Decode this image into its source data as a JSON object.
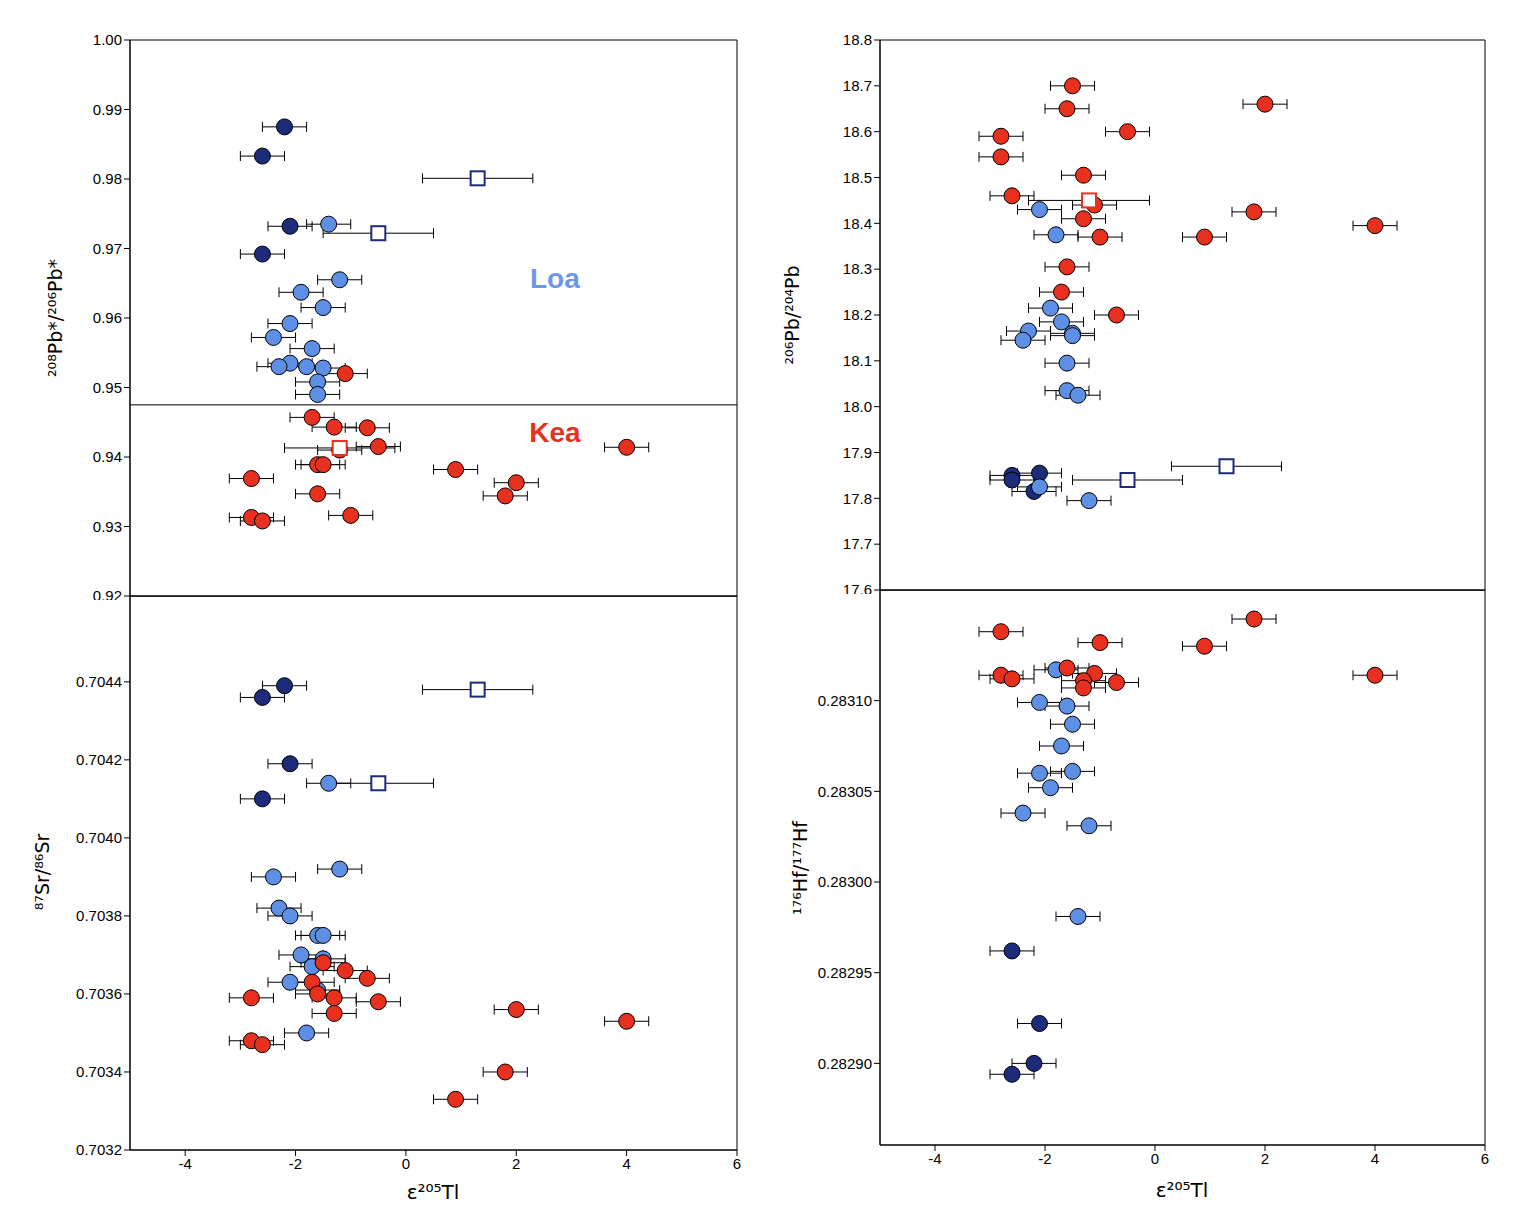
{
  "chart_data": [
    {
      "type": "scatter",
      "y_label": "²⁰⁸Pb*/²⁰⁶Pb*",
      "tick_labels": "y",
      "xlim": [
        -5,
        6
      ],
      "xticks": [
        -4,
        -2,
        0,
        2,
        4,
        6
      ],
      "ylim": [
        0.92,
        1.0
      ],
      "yticks": [
        0.92,
        0.93,
        0.94,
        0.95,
        0.96,
        0.97,
        0.98,
        0.99,
        {
          "value": 1.0,
          "label": "1.00"
        }
      ],
      "hline": 0.9475,
      "annotations": [
        {
          "text": "Loa",
          "x": 2.7,
          "y": 0.9658,
          "color": "#6a97e8"
        },
        {
          "text": "Kea",
          "x": 2.7,
          "y": 0.9436,
          "color": "#e8301e"
        }
      ],
      "series": [
        {
          "color": "#1c2b7a",
          "marker": "circle",
          "x_error": 0.4,
          "x": [
            -2.2,
            -2.6,
            -2.1,
            -2.6
          ],
          "values": [
            0.9875,
            0.9833,
            0.9732,
            0.9692
          ]
        },
        {
          "color": "#5d8fe5",
          "marker": "circle",
          "x_error": 0.4,
          "x": [
            -1.4,
            -1.2,
            -1.9,
            -1.5,
            -2.1,
            -2.4,
            -1.7,
            -2.1,
            -2.3,
            -1.8,
            -1.5,
            -1.6,
            -1.6
          ],
          "values": [
            0.9735,
            0.9655,
            0.9637,
            0.9615,
            0.9592,
            0.9572,
            0.9556,
            0.9535,
            0.953,
            0.953,
            0.9528,
            0.9508,
            0.949
          ]
        },
        {
          "color": "#e8301e",
          "marker": "circle",
          "x_error": 0.4,
          "x": [
            -1.1,
            -1.7,
            -1.3,
            -0.7,
            -0.5,
            -1.2,
            -1.6,
            -1.5,
            0.9,
            4.0,
            2.0,
            1.8,
            -2.8,
            -1.6,
            -1.0,
            -2.8,
            -2.6
          ],
          "values": [
            0.952,
            0.9457,
            0.9443,
            0.9442,
            0.9415,
            0.941,
            0.9389,
            0.9389,
            0.9382,
            0.9414,
            0.9363,
            0.9344,
            0.9369,
            0.9347,
            0.9316,
            0.9313,
            0.9308
          ]
        },
        {
          "color": "#1c2b7a",
          "marker": "open_square",
          "x_error": [
            1.0,
            1.0
          ],
          "x": [
            1.3,
            -0.5
          ],
          "values": [
            0.9801,
            0.9722
          ]
        },
        {
          "color": "#e8301e",
          "marker": "open_square",
          "x_error": [
            1.0
          ],
          "x": [
            -1.2
          ],
          "values": [
            0.9413
          ]
        }
      ]
    },
    {
      "type": "scatter",
      "y_label": "⁸⁷Sr/⁸⁶Sr",
      "x_label": "ε²⁰⁵Tl",
      "xlim": [
        -5,
        6
      ],
      "xticks": [
        -4,
        -2,
        0,
        2,
        4,
        6
      ],
      "ylim": [
        0.7032,
        0.70462
      ],
      "yticks": [
        0.7032,
        0.7034,
        0.7036,
        0.7038,
        {
          "value": 0.704,
          "label": "0.7040"
        },
        0.7042,
        0.7044
      ],
      "series": [
        {
          "color": "#1c2b7a",
          "marker": "circle",
          "x_error": 0.4,
          "x": [
            -2.2,
            -2.6,
            -2.1,
            -2.6
          ],
          "values": [
            0.70439,
            0.70436,
            0.70419,
            0.7041
          ]
        },
        {
          "color": "#5d8fe5",
          "marker": "circle",
          "x_error": 0.4,
          "x": [
            -1.2,
            -2.4,
            -2.3,
            -2.1,
            -1.6,
            -1.5,
            -1.9,
            -1.5,
            -1.7,
            -2.1,
            -1.6,
            -1.8,
            -1.4
          ],
          "values": [
            0.70392,
            0.7039,
            0.70382,
            0.7038,
            0.70375,
            0.70375,
            0.7037,
            0.70369,
            0.70367,
            0.70363,
            0.70361,
            0.7035,
            0.70414
          ]
        },
        {
          "color": "#e8301e",
          "marker": "circle",
          "x_error": 0.4,
          "x": [
            -1.5,
            -1.1,
            -0.7,
            -1.7,
            -1.6,
            -1.3,
            -0.5,
            -2.8,
            -1.3,
            2.0,
            4.0,
            -2.8,
            -2.6,
            1.8,
            0.9
          ],
          "values": [
            0.70368,
            0.70366,
            0.70364,
            0.70363,
            0.7036,
            0.70359,
            0.70358,
            0.70359,
            0.70355,
            0.70356,
            0.70353,
            0.70348,
            0.70347,
            0.7034,
            0.70333
          ]
        },
        {
          "color": "#1c2b7a",
          "marker": "open_square",
          "x_error": [
            1.0,
            1.0
          ],
          "x": [
            1.3,
            -0.5
          ],
          "values": [
            0.70438,
            0.70414
          ]
        }
      ]
    },
    {
      "type": "scatter",
      "y_label": "²⁰⁶Pb/²⁰⁴Pb",
      "tick_labels": "y",
      "xlim": [
        -5,
        6
      ],
      "xticks": [
        -4,
        -2,
        0,
        2,
        4,
        6
      ],
      "ylim": [
        17.6,
        18.8
      ],
      "yticks": [
        17.6,
        17.7,
        17.8,
        17.9,
        {
          "value": 18.0,
          "label": "18.0"
        },
        18.1,
        18.2,
        18.3,
        18.4,
        18.5,
        18.6,
        18.7,
        18.8
      ],
      "series": [
        {
          "color": "#1c2b7a",
          "marker": "circle",
          "x_error": 0.4,
          "x": [
            -2.6,
            -2.1,
            -2.6,
            -2.2
          ],
          "values": [
            17.85,
            17.855,
            17.84,
            17.815
          ]
        },
        {
          "color": "#5d8fe5",
          "marker": "circle",
          "x_error": 0.4,
          "x": [
            -2.1,
            -1.8,
            -1.9,
            -1.7,
            -2.3,
            -1.5,
            -1.5,
            -2.4,
            -1.6,
            -1.6,
            -1.4,
            -2.1,
            -1.2
          ],
          "values": [
            18.43,
            18.375,
            18.215,
            18.185,
            18.165,
            18.16,
            18.155,
            18.145,
            18.095,
            18.035,
            18.025,
            17.825,
            17.795
          ]
        },
        {
          "color": "#e8301e",
          "marker": "circle",
          "x_error": 0.4,
          "x": [
            -1.5,
            2.0,
            -1.6,
            -2.8,
            -0.5,
            -2.8,
            -1.3,
            -2.6,
            -1.1,
            1.8,
            -1.3,
            4.0,
            0.9,
            -1.0,
            -1.6,
            -1.7,
            -0.7
          ],
          "values": [
            18.7,
            18.66,
            18.65,
            18.59,
            18.6,
            18.545,
            18.505,
            18.46,
            18.44,
            18.425,
            18.41,
            18.395,
            18.37,
            18.37,
            18.305,
            18.25,
            18.2
          ]
        },
        {
          "color": "#1c2b7a",
          "marker": "open_square",
          "x_error": [
            1.0,
            1.0
          ],
          "x": [
            -0.5,
            1.3
          ],
          "values": [
            17.84,
            17.87
          ]
        },
        {
          "color": "#e8301e",
          "marker": "open_square",
          "x_error": [
            1.1
          ],
          "x": [
            -1.2
          ],
          "values": [
            18.45
          ]
        }
      ]
    },
    {
      "type": "scatter",
      "y_label": "¹⁷⁶Hf/¹⁷⁷Hf",
      "x_label": "ε²⁰⁵Tl",
      "xlim": [
        -5,
        6
      ],
      "xticks": [
        -4,
        -2,
        0,
        2,
        4,
        6
      ],
      "ylim": [
        0.282855,
        0.283161
      ],
      "yticks": [
        {
          "value": 0.2829,
          "label": "0.28290"
        },
        0.28295,
        {
          "value": 0.283,
          "label": "0.28300"
        },
        0.28305,
        {
          "value": 0.2831,
          "label": "0.28310"
        }
      ],
      "series": [
        {
          "color": "#1c2b7a",
          "marker": "circle",
          "x_error": 0.4,
          "x": [
            -2.6,
            -2.1,
            -2.2,
            -2.6
          ],
          "values": [
            0.282962,
            0.282922,
            0.2829,
            0.282894
          ]
        },
        {
          "color": "#5d8fe5",
          "marker": "circle",
          "x_error": 0.4,
          "x": [
            -1.8,
            -2.1,
            -1.6,
            -1.5,
            -1.7,
            -2.1,
            -1.5,
            -1.9,
            -2.4,
            -1.2,
            -1.4
          ],
          "values": [
            0.283117,
            0.283099,
            0.283097,
            0.283087,
            0.283075,
            0.28306,
            0.283061,
            0.283052,
            0.283038,
            0.283031,
            0.282981
          ]
        },
        {
          "color": "#e8301e",
          "marker": "circle",
          "x_error": 0.4,
          "x": [
            1.8,
            -2.8,
            -1.0,
            0.9,
            -1.6,
            -1.1,
            -2.8,
            -2.6,
            -1.3,
            -0.7,
            -1.3,
            4.0
          ],
          "values": [
            0.283145,
            0.283138,
            0.283132,
            0.28313,
            0.283118,
            0.283115,
            0.283114,
            0.283112,
            0.283111,
            0.28311,
            0.283107,
            0.283114
          ]
        }
      ]
    }
  ]
}
